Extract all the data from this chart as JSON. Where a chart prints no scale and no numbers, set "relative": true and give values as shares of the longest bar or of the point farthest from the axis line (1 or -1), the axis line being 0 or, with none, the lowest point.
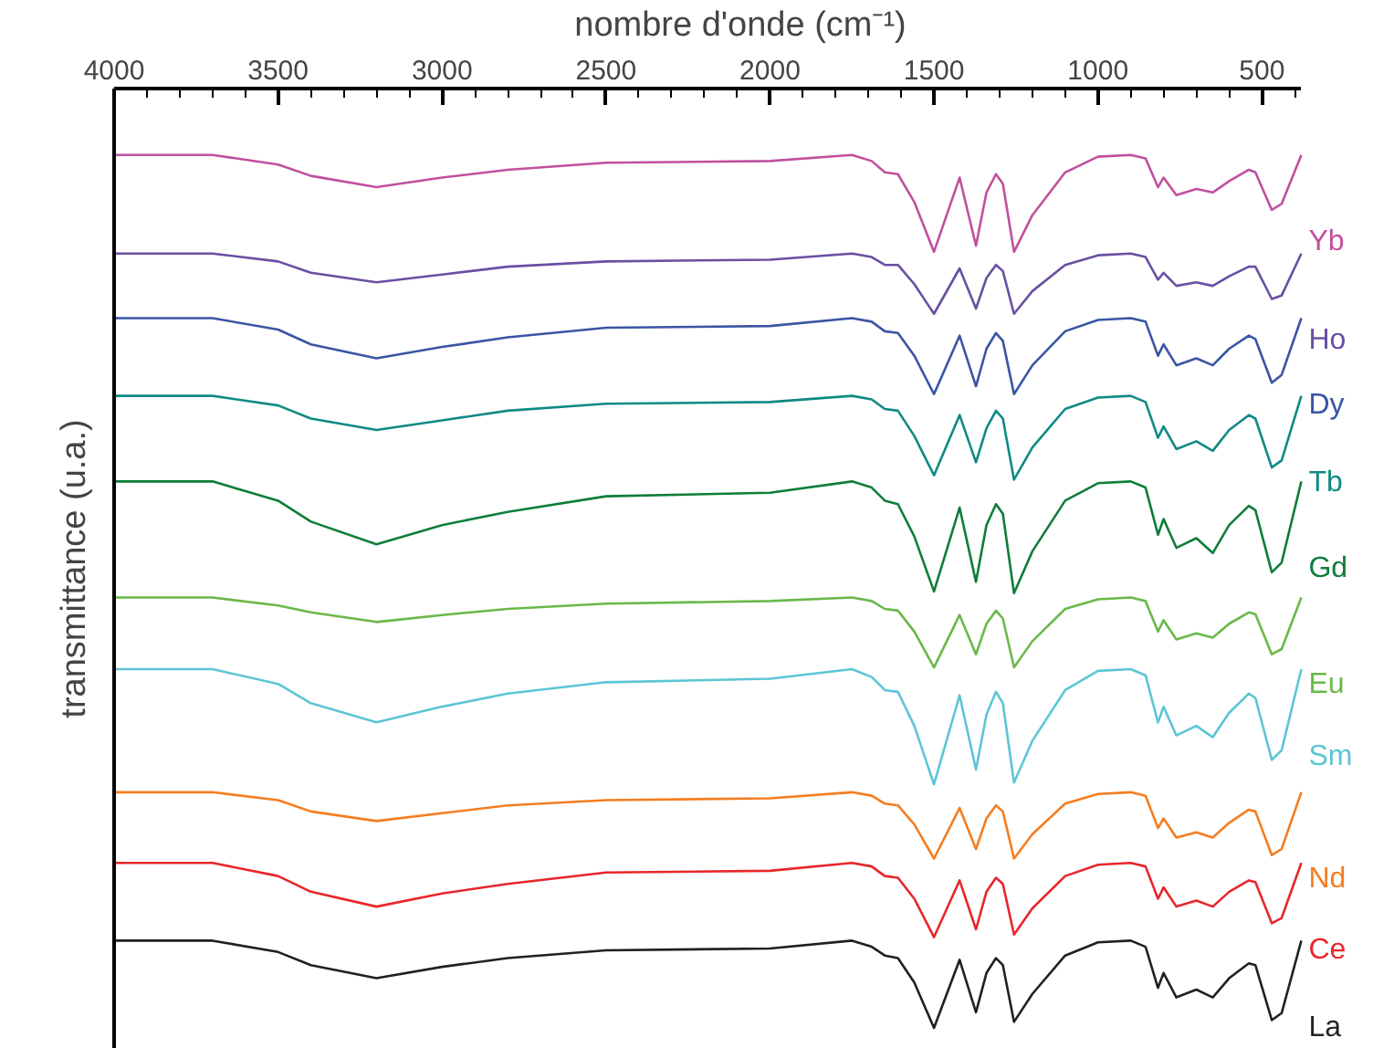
{
  "chart_data": {
    "type": "line",
    "xlabel": "nombre d'onde (cm⁻¹)",
    "ylabel": "transmittance (u.a.)",
    "relative": true,
    "xlim": [
      4000,
      380
    ],
    "xticks": [
      4000,
      3500,
      3000,
      2500,
      2000,
      1500,
      1000,
      500
    ],
    "grid": false,
    "legend": false,
    "tick_labels": "x",
    "x": [
      4000,
      3700,
      3500,
      3400,
      3200,
      3000,
      2800,
      2500,
      2000,
      1750,
      1690,
      1650,
      1610,
      1560,
      1500,
      1422,
      1372,
      1340,
      1311,
      1290,
      1256,
      1200,
      1100,
      1000,
      900,
      855,
      817,
      800,
      761,
      700,
      650,
      600,
      540,
      520,
      470,
      440,
      380
    ],
    "series": [
      {
        "name": "Yb",
        "color": "#c0509f",
        "values": [
          1.0,
          1.0,
          0.989,
          0.976,
          0.963,
          0.974,
          0.983,
          0.991,
          0.993,
          1.0,
          0.993,
          0.98,
          0.978,
          0.946,
          0.889,
          0.974,
          0.896,
          0.957,
          0.978,
          0.967,
          0.889,
          0.931,
          0.98,
          0.998,
          1.0,
          0.996,
          0.963,
          0.974,
          0.954,
          0.961,
          0.957,
          0.97,
          0.983,
          0.98,
          0.937,
          0.944,
          1.0
        ]
      },
      {
        "name": "Ho",
        "color": "#6a4fa3",
        "values": [
          0.887,
          0.887,
          0.878,
          0.865,
          0.854,
          0.863,
          0.872,
          0.878,
          0.88,
          0.887,
          0.883,
          0.874,
          0.874,
          0.852,
          0.818,
          0.87,
          0.824,
          0.859,
          0.874,
          0.867,
          0.818,
          0.844,
          0.874,
          0.885,
          0.887,
          0.883,
          0.857,
          0.865,
          0.85,
          0.854,
          0.85,
          0.861,
          0.872,
          0.872,
          0.835,
          0.839,
          0.887
        ]
      },
      {
        "name": "Dy",
        "color": "#3a55a4",
        "values": [
          0.813,
          0.813,
          0.8,
          0.783,
          0.767,
          0.78,
          0.791,
          0.802,
          0.804,
          0.813,
          0.809,
          0.798,
          0.796,
          0.77,
          0.726,
          0.793,
          0.735,
          0.778,
          0.796,
          0.787,
          0.726,
          0.759,
          0.798,
          0.811,
          0.813,
          0.809,
          0.77,
          0.783,
          0.759,
          0.767,
          0.759,
          0.778,
          0.793,
          0.789,
          0.739,
          0.748,
          0.813
        ]
      },
      {
        "name": "Tb",
        "color": "#0f8a84",
        "values": [
          0.724,
          0.724,
          0.713,
          0.698,
          0.685,
          0.696,
          0.707,
          0.715,
          0.717,
          0.724,
          0.72,
          0.709,
          0.707,
          0.678,
          0.633,
          0.702,
          0.648,
          0.687,
          0.707,
          0.698,
          0.628,
          0.665,
          0.709,
          0.722,
          0.724,
          0.717,
          0.676,
          0.689,
          0.663,
          0.672,
          0.661,
          0.685,
          0.702,
          0.698,
          0.642,
          0.65,
          0.724
        ]
      },
      {
        "name": "Gd",
        "color": "#0e7d3a",
        "values": [
          0.626,
          0.626,
          0.604,
          0.58,
          0.554,
          0.576,
          0.591,
          0.609,
          0.613,
          0.626,
          0.619,
          0.604,
          0.6,
          0.563,
          0.5,
          0.596,
          0.511,
          0.576,
          0.6,
          0.589,
          0.498,
          0.546,
          0.604,
          0.624,
          0.626,
          0.619,
          0.565,
          0.583,
          0.55,
          0.561,
          0.544,
          0.576,
          0.598,
          0.593,
          0.522,
          0.533,
          0.626
        ]
      },
      {
        "name": "Eu",
        "color": "#6ab84a",
        "values": [
          0.493,
          0.493,
          0.484,
          0.476,
          0.465,
          0.473,
          0.48,
          0.486,
          0.489,
          0.493,
          0.489,
          0.48,
          0.478,
          0.454,
          0.413,
          0.473,
          0.428,
          0.463,
          0.478,
          0.469,
          0.413,
          0.443,
          0.48,
          0.491,
          0.493,
          0.489,
          0.454,
          0.467,
          0.445,
          0.452,
          0.447,
          0.463,
          0.476,
          0.474,
          0.428,
          0.434,
          0.493
        ]
      },
      {
        "name": "Sm",
        "color": "#5cc5d6",
        "values": [
          0.411,
          0.411,
          0.394,
          0.372,
          0.35,
          0.368,
          0.383,
          0.396,
          0.4,
          0.411,
          0.402,
          0.387,
          0.385,
          0.346,
          0.279,
          0.381,
          0.296,
          0.359,
          0.385,
          0.372,
          0.281,
          0.329,
          0.387,
          0.409,
          0.411,
          0.404,
          0.35,
          0.368,
          0.335,
          0.346,
          0.333,
          0.361,
          0.383,
          0.378,
          0.307,
          0.318,
          0.411
        ]
      },
      {
        "name": "Nd",
        "color": "#f47d20",
        "values": [
          0.27,
          0.27,
          0.261,
          0.248,
          0.237,
          0.246,
          0.255,
          0.261,
          0.263,
          0.27,
          0.266,
          0.257,
          0.255,
          0.233,
          0.194,
          0.252,
          0.205,
          0.24,
          0.255,
          0.248,
          0.194,
          0.222,
          0.257,
          0.268,
          0.27,
          0.266,
          0.229,
          0.24,
          0.218,
          0.224,
          0.218,
          0.235,
          0.25,
          0.248,
          0.198,
          0.205,
          0.27
        ]
      },
      {
        "name": "Ce",
        "color": "#e8262a",
        "values": [
          0.189,
          0.189,
          0.174,
          0.156,
          0.139,
          0.154,
          0.165,
          0.178,
          0.18,
          0.189,
          0.185,
          0.174,
          0.172,
          0.148,
          0.104,
          0.169,
          0.113,
          0.156,
          0.172,
          0.165,
          0.107,
          0.137,
          0.174,
          0.187,
          0.189,
          0.185,
          0.148,
          0.161,
          0.139,
          0.146,
          0.139,
          0.156,
          0.169,
          0.167,
          0.12,
          0.126,
          0.189
        ]
      },
      {
        "name": "La",
        "color": "#231f20",
        "values": [
          0.1,
          0.1,
          0.087,
          0.072,
          0.057,
          0.07,
          0.08,
          0.089,
          0.091,
          0.1,
          0.093,
          0.083,
          0.08,
          0.052,
          0.0,
          0.078,
          0.018,
          0.063,
          0.08,
          0.072,
          0.007,
          0.039,
          0.083,
          0.098,
          0.1,
          0.093,
          0.046,
          0.063,
          0.035,
          0.044,
          0.035,
          0.057,
          0.074,
          0.072,
          0.009,
          0.017,
          0.1
        ]
      }
    ]
  }
}
